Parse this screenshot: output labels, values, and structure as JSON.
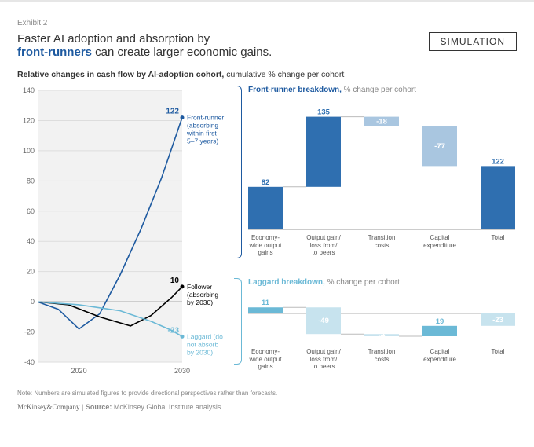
{
  "exhibit_label": "Exhibit 2",
  "title_line1": "Faster AI adoption and absorption by",
  "title_bold": "front-runners",
  "title_line2_rest": " can create larger economic gains.",
  "simulation_label": "SIMULATION",
  "subtitle_bold": "Relative changes in cash flow by AI-adoption cohort,",
  "subtitle_rest": " cumulative % change per cohort",
  "line_chart": {
    "type": "line",
    "ylim": [
      -40,
      140
    ],
    "ytick_step": 20,
    "xlim": [
      2016,
      2030
    ],
    "xticks": [
      2020,
      2030
    ],
    "background_color": "#f2f2f2",
    "grid_color": "#dddddd",
    "axis_fontsize": 9,
    "label_fontsize": 8.5,
    "series": [
      {
        "name": "Front-runner",
        "color": "#1e5aa0",
        "end_value": 122,
        "label_lines": [
          "Front-runner",
          "(absorbing",
          "within first",
          "5–7 years)"
        ],
        "points": [
          [
            2016,
            0
          ],
          [
            2018,
            -5
          ],
          [
            2020,
            -18
          ],
          [
            2022,
            -8
          ],
          [
            2024,
            18
          ],
          [
            2026,
            48
          ],
          [
            2028,
            82
          ],
          [
            2030,
            122
          ]
        ]
      },
      {
        "name": "Follower",
        "color": "#000000",
        "end_value": 10,
        "label_lines": [
          "Follower",
          "(absorbing",
          "by 2030)"
        ],
        "points": [
          [
            2016,
            0
          ],
          [
            2019,
            -2
          ],
          [
            2022,
            -10
          ],
          [
            2025,
            -16
          ],
          [
            2027,
            -9
          ],
          [
            2029,
            3
          ],
          [
            2030,
            10
          ]
        ]
      },
      {
        "name": "Laggard",
        "color": "#6bb9d6",
        "end_value": -23,
        "label_lines": [
          "Laggard (do",
          "not absorb",
          "by 2030)"
        ],
        "points": [
          [
            2016,
            0
          ],
          [
            2020,
            -2
          ],
          [
            2024,
            -6
          ],
          [
            2027,
            -13
          ],
          [
            2029,
            -19
          ],
          [
            2030,
            -23
          ]
        ]
      }
    ]
  },
  "waterfalls": {
    "categories": [
      "Economy-\nwide output\ngains",
      "Output gain/\nloss from/\nto peers",
      "Transition\ncosts",
      "Capital\nexpenditure",
      "Total"
    ],
    "cat_fontsize": 8,
    "value_fontsize": 9.5,
    "front": {
      "title_colored": "Front-runner breakdown,",
      "title_rest": " % change per cohort",
      "color_pos": "#2f6fb0",
      "color_neg": "#a9c6e0",
      "connector_color": "#bbbbbb",
      "bars": [
        {
          "label": "Economy-wide output gains",
          "value": 82,
          "cum_start": 0,
          "cum_end": 82
        },
        {
          "label": "Output gain/loss from/to peers",
          "value": 135,
          "cum_start": 82,
          "cum_end": 217
        },
        {
          "label": "Transition costs",
          "value": -18,
          "cum_start": 217,
          "cum_end": 199
        },
        {
          "label": "Capital expenditure",
          "value": -77,
          "cum_start": 199,
          "cum_end": 122
        },
        {
          "label": "Total",
          "value": 122,
          "cum_start": 0,
          "cum_end": 122,
          "is_total": true
        }
      ],
      "ylim_max": 230
    },
    "laggard": {
      "title_colored": "Laggard breakdown,",
      "title_rest": " % change per cohort",
      "color_pos": "#6bb9d6",
      "color_neg": "#c7e3ee",
      "connector_color": "#bbbbbb",
      "bars": [
        {
          "label": "Economy-wide output gains",
          "value": 11,
          "cum_start": 0,
          "cum_end": 11
        },
        {
          "label": "Output gain/loss from/to peers",
          "value": -49,
          "cum_start": 11,
          "cum_end": -38
        },
        {
          "label": "Transition costs",
          "value": -4,
          "cum_start": -38,
          "cum_end": -42
        },
        {
          "label": "Capital expenditure",
          "value": 19,
          "cum_start": -42,
          "cum_end": -23
        },
        {
          "label": "Total",
          "value": -23,
          "cum_start": 0,
          "cum_end": -23,
          "is_total": true
        }
      ],
      "ylim_min": -55,
      "ylim_max": 20
    }
  },
  "note": "Note: Numbers are simulated figures to provide directional perspectives rather than forecasts.",
  "footer_company": "McKinsey&Company",
  "footer_sep": "  |  ",
  "footer_source_label": "Source: ",
  "footer_source": "McKinsey Global Institute analysis"
}
